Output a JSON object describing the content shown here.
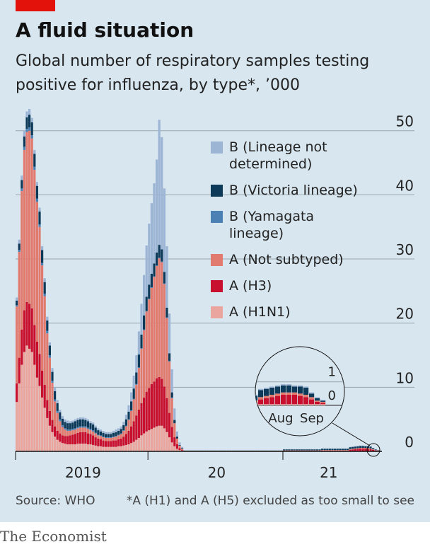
{
  "chart_data": {
    "type": "stacked_bar",
    "title": "A fluid situation",
    "subtitle": "Global number of respiratory samples testing positive for influenza, by type*, ’000",
    "source": "Source: WHO",
    "note": "*A (H1) and A (H5) excluded as too small to see",
    "ylim": [
      0,
      53.5
    ],
    "yticks": [
      0,
      10,
      20,
      30,
      40,
      50
    ],
    "grid": true,
    "xticks": [
      0,
      52,
      105
    ],
    "xtick_labels": [
      {
        "value": 26,
        "label": "2019"
      },
      {
        "value": 78.5,
        "label": "20"
      },
      {
        "value": 122.5,
        "label": "21"
      }
    ],
    "categories": [
      null,
      null,
      null,
      null,
      null,
      null,
      null,
      null,
      null,
      null,
      null,
      null,
      null,
      null,
      null,
      null,
      null,
      null,
      null,
      null,
      null,
      null,
      null,
      null,
      null,
      null,
      null,
      null,
      null,
      null,
      null,
      null,
      null,
      null,
      null,
      null,
      null,
      null,
      null,
      null,
      null,
      null,
      null,
      null,
      null,
      null,
      null,
      null,
      null,
      null,
      null,
      null,
      null,
      null,
      null,
      null,
      null,
      null,
      null,
      null,
      null,
      null,
      null,
      null,
      null,
      null,
      null,
      null,
      null,
      null,
      null,
      null,
      null,
      null,
      null,
      null,
      null,
      null,
      null,
      null,
      null,
      null,
      null,
      null,
      null,
      null,
      null,
      null,
      null,
      null,
      null,
      null,
      null,
      null,
      null,
      null,
      null,
      null,
      null,
      null,
      null,
      null,
      null,
      null,
      null,
      null,
      null,
      null,
      null,
      null,
      null,
      null,
      null,
      null,
      null,
      null,
      null,
      null,
      null,
      null,
      null,
      null,
      null,
      null,
      null,
      null,
      null,
      null,
      null,
      null,
      null,
      null,
      null,
      null,
      null,
      null,
      null,
      null,
      null,
      null,
      null,
      null,
      null
    ],
    "series": [
      {
        "name": "A (H1N1)",
        "color": "#eaa59e",
        "values": [
          7.7,
          10.6,
          13.5,
          15.5,
          16.5,
          16,
          15.5,
          13.5,
          11.5,
          10.2,
          8.4,
          6.8,
          5.2,
          4,
          3,
          2.3,
          1.8,
          1.5,
          1.3,
          1.2,
          1.1,
          1.1,
          1.1,
          1.1,
          1.2,
          1.2,
          1.2,
          1.2,
          1.1,
          1.1,
          1,
          0.9,
          0.8,
          0.8,
          0.7,
          0.7,
          0.7,
          0.7,
          0.7,
          0.7,
          0.8,
          0.8,
          0.9,
          1,
          1.1,
          1.3,
          1.5,
          1.8,
          2.1,
          2.5,
          2.8,
          3.1,
          3.3,
          3.5,
          3.7,
          3.9,
          4,
          4,
          3.6,
          3,
          2.2,
          1.4,
          0.8,
          0.4,
          0.2,
          0.1,
          0.03,
          0.03,
          0.03,
          0.03,
          0.03,
          0.03,
          0.03,
          0.03,
          0.03,
          0.03,
          0.03,
          0.03,
          0.03,
          0.03,
          0.03,
          0.03,
          0.03,
          0.03,
          0.03,
          0.03,
          0.03,
          0.03,
          0.03,
          0.03,
          0.03,
          0.03,
          0.03,
          0.03,
          0.03,
          0.03,
          0.03,
          0.03,
          0.03,
          0.03,
          0.03,
          0.03,
          0.03,
          0.03,
          0.03,
          0.03,
          0.03,
          0.03,
          0.03,
          0.03,
          0.03,
          0.03,
          0.03,
          0.03,
          0.03,
          0.03,
          0.03,
          0.03,
          0.03,
          0.03,
          0.03,
          0.03,
          0.03,
          0.03,
          0.03,
          0.03,
          0.03,
          0.03,
          0.03,
          0.03,
          0.03,
          0.05,
          0.05,
          0.05,
          0.05,
          0.05,
          0.05,
          0.05,
          0.05,
          0.05,
          0.05,
          0.05,
          0.05
        ]
      },
      {
        "name": "A (H3)",
        "color": "#c8102e",
        "values": [
          2.9,
          4,
          5.5,
          6.5,
          6.8,
          7,
          6.8,
          6.2,
          5.6,
          5,
          4.2,
          3.6,
          2.8,
          2.3,
          1.9,
          1.6,
          1.4,
          1.3,
          1.2,
          1.2,
          1.3,
          1.4,
          1.5,
          1.6,
          1.7,
          1.8,
          1.8,
          1.8,
          1.7,
          1.6,
          1.5,
          1.3,
          1.2,
          1.1,
          1,
          0.9,
          0.9,
          0.9,
          1,
          1,
          1.1,
          1.2,
          1.4,
          1.7,
          2.1,
          2.6,
          3.2,
          3.8,
          4.4,
          5,
          5.6,
          6.2,
          6.6,
          7,
          7.2,
          7.5,
          7.6,
          7.3,
          6.5,
          5.3,
          3.8,
          2.4,
          1.4,
          0.7,
          0.3,
          0.1,
          0.03,
          0.03,
          0.03,
          0.03,
          0.03,
          0.03,
          0.03,
          0.03,
          0.03,
          0.03,
          0.03,
          0.03,
          0.03,
          0.03,
          0.03,
          0.03,
          0.03,
          0.03,
          0.03,
          0.03,
          0.03,
          0.03,
          0.03,
          0.03,
          0.03,
          0.03,
          0.03,
          0.03,
          0.03,
          0.03,
          0.03,
          0.03,
          0.03,
          0.03,
          0.03,
          0.03,
          0.03,
          0.03,
          0.03,
          0.05,
          0.05,
          0.05,
          0.05,
          0.05,
          0.05,
          0.05,
          0.05,
          0.05,
          0.05,
          0.05,
          0.05,
          0.05,
          0.05,
          0.05,
          0.1,
          0.1,
          0.1,
          0.1,
          0.1,
          0.1,
          0.1,
          0.1,
          0.1,
          0.1,
          0.1,
          0.2,
          0.25,
          0.3,
          0.35,
          0.4,
          0.4,
          0.4,
          0.35,
          0.3,
          0.2,
          0.1,
          0.05
        ]
      },
      {
        "name": "A (Not subtyped)",
        "color": "#e27b6f",
        "values": [
          12,
          16.5,
          21.6,
          25,
          26.5,
          27,
          26.5,
          24.2,
          21.8,
          19.8,
          16.4,
          13.8,
          10.4,
          8.3,
          5.8,
          3.9,
          2.8,
          1.9,
          1.3,
          1,
          0.8,
          0.7,
          0.7,
          0.7,
          0.7,
          0.7,
          0.7,
          0.7,
          0.7,
          0.6,
          0.6,
          0.6,
          0.5,
          0.5,
          0.5,
          0.5,
          0.5,
          0.5,
          0.5,
          0.6,
          0.6,
          0.7,
          0.9,
          1.2,
          1.7,
          2.4,
          3.4,
          4.8,
          6.5,
          8.5,
          10.5,
          12.5,
          13.8,
          15,
          16.3,
          17.5,
          18.5,
          18.2,
          16,
          12.5,
          8,
          4.5,
          2.2,
          0.9,
          0.4,
          0.2,
          0.05,
          0.05,
          0.05,
          0.05,
          0.05,
          0.05,
          0.05,
          0.05,
          0.05,
          0.05,
          0.05,
          0.05,
          0.05,
          0.05,
          0.05,
          0.05,
          0.05,
          0.05,
          0.05,
          0.05,
          0.05,
          0.05,
          0.05,
          0.05,
          0.05,
          0.05,
          0.05,
          0.05,
          0.05,
          0.05,
          0.05,
          0.05,
          0.05,
          0.05,
          0.05,
          0.05,
          0.05,
          0.05,
          0.05,
          0.08,
          0.08,
          0.08,
          0.08,
          0.08,
          0.08,
          0.08,
          0.08,
          0.08,
          0.08,
          0.08,
          0.08,
          0.08,
          0.08,
          0.08,
          0.08,
          0.08,
          0.08,
          0.08,
          0.08,
          0.08,
          0.08,
          0.08,
          0.08,
          0.08,
          0.08,
          0.1,
          0.1,
          0.1,
          0.1,
          0.1,
          0.1,
          0.1,
          0.1,
          0.1,
          0.1,
          0.05,
          0.05
        ]
      },
      {
        "name": "B (Yamagata lineage)",
        "color": "#4a80b4",
        "values": [
          0.2,
          0.3,
          0.4,
          0.5,
          0.5,
          0.5,
          0.5,
          0.5,
          0.5,
          0.4,
          0.4,
          0.4,
          0.4,
          0.4,
          0.3,
          0.3,
          0.3,
          0.3,
          0.3,
          0.2,
          0.2,
          0.2,
          0.2,
          0.2,
          0.2,
          0.2,
          0.2,
          0.2,
          0.2,
          0.2,
          0.2,
          0.1,
          0.1,
          0.1,
          0.1,
          0.1,
          0.1,
          0.1,
          0.1,
          0.1,
          0.1,
          0.1,
          0.1,
          0.1,
          0.1,
          0.1,
          0.1,
          0.1,
          0.1,
          0.1,
          0.1,
          0.1,
          0.1,
          0.1,
          0.1,
          0.1,
          0.1,
          0.1,
          0.1,
          0.1,
          0.1,
          0.1,
          0,
          0,
          0,
          0,
          0,
          0,
          0,
          0,
          0,
          0,
          0,
          0,
          0,
          0,
          0,
          0,
          0,
          0,
          0,
          0,
          0,
          0,
          0,
          0,
          0,
          0,
          0,
          0,
          0,
          0,
          0,
          0,
          0,
          0,
          0,
          0,
          0,
          0,
          0,
          0,
          0,
          0,
          0,
          0,
          0,
          0,
          0,
          0,
          0,
          0,
          0,
          0,
          0,
          0,
          0,
          0,
          0,
          0,
          0,
          0,
          0,
          0,
          0,
          0,
          0,
          0,
          0,
          0,
          0,
          0,
          0,
          0,
          0,
          0,
          0,
          0,
          0,
          0,
          0,
          0,
          0
        ]
      },
      {
        "name": "B (Victoria lineage)",
        "color": "#0d3a58",
        "values": [
          0.7,
          1,
          1.3,
          1.6,
          1.8,
          2,
          2,
          2,
          2,
          2,
          2,
          1.8,
          1.6,
          1.5,
          1.4,
          1.3,
          1.2,
          1.1,
          1,
          1,
          1,
          1,
          1,
          1.1,
          1.1,
          1.1,
          1.1,
          1,
          1,
          0.9,
          0.9,
          0.8,
          0.7,
          0.6,
          0.6,
          0.5,
          0.5,
          0.5,
          0.6,
          0.6,
          0.6,
          0.7,
          0.8,
          1,
          1.2,
          1.4,
          1.6,
          1.8,
          2,
          2.1,
          2.2,
          2.2,
          2.2,
          2.1,
          2,
          2,
          2,
          1.9,
          1.8,
          1.5,
          1.2,
          0.8,
          0.5,
          0.3,
          0.1,
          0.1,
          0.02,
          0.02,
          0.02,
          0.02,
          0.02,
          0.02,
          0.02,
          0.02,
          0.02,
          0.02,
          0.02,
          0.02,
          0.02,
          0.02,
          0.02,
          0.02,
          0.02,
          0.02,
          0.02,
          0.02,
          0.02,
          0.02,
          0.02,
          0.02,
          0.02,
          0.02,
          0.02,
          0.02,
          0.02,
          0.02,
          0.02,
          0.02,
          0.02,
          0.02,
          0.02,
          0.02,
          0.02,
          0.02,
          0.02,
          0.15,
          0.15,
          0.15,
          0.15,
          0.15,
          0.15,
          0.15,
          0.15,
          0.15,
          0.15,
          0.15,
          0.15,
          0.15,
          0.15,
          0.15,
          0.2,
          0.2,
          0.2,
          0.2,
          0.2,
          0.2,
          0.2,
          0.2,
          0.2,
          0.2,
          0.2,
          0.3,
          0.3,
          0.3,
          0.3,
          0.3,
          0.3,
          0.25,
          0.3,
          0.3,
          0.15,
          0.1,
          0.05
        ]
      },
      {
        "name": "B (Lineage not determined)",
        "color": "#9db5d5",
        "values": [
          0.5,
          0.6,
          0.7,
          0.9,
          0.9,
          0.9,
          0.7,
          0.6,
          0.6,
          0.6,
          0.6,
          0.6,
          0.6,
          0.5,
          0.6,
          0.6,
          0.5,
          0.4,
          0.4,
          0.4,
          0.4,
          0.3,
          0.3,
          0.3,
          0.3,
          0.3,
          0.3,
          0.3,
          0.3,
          0.3,
          0.3,
          0.3,
          0.3,
          0.3,
          0.3,
          0.3,
          0.3,
          0.3,
          0.3,
          0.4,
          0.4,
          0.4,
          0.5,
          0.7,
          1,
          1.4,
          2,
          2.7,
          3.6,
          4.8,
          6.3,
          8,
          9.5,
          11,
          12.5,
          14.5,
          19.5,
          17.5,
          13,
          9.6,
          6.2,
          3.6,
          1.8,
          0.8,
          0.4,
          0.2,
          0.04,
          0.04,
          0.04,
          0.04,
          0.04,
          0.04,
          0.04,
          0.04,
          0.04,
          0.04,
          0.04,
          0.04,
          0.04,
          0.04,
          0.04,
          0.04,
          0.04,
          0.04,
          0.04,
          0.04,
          0.04,
          0.04,
          0.04,
          0.04,
          0.04,
          0.04,
          0.04,
          0.04,
          0.04,
          0.04,
          0.04,
          0.04,
          0.04,
          0.04,
          0.04,
          0.04,
          0.04,
          0.04,
          0.04,
          0.05,
          0.05,
          0.05,
          0.05,
          0.05,
          0.05,
          0.05,
          0.05,
          0.05,
          0.05,
          0.05,
          0.05,
          0.05,
          0.05,
          0.05,
          0.05,
          0.05,
          0.05,
          0.05,
          0.05,
          0.05,
          0.05,
          0.05,
          0.05,
          0.05,
          0.05,
          0.05,
          0.05,
          0.05,
          0.05,
          0.05,
          0.05,
          0.05,
          0.05,
          0.05,
          0.05,
          0.05,
          0.03
        ]
      }
    ],
    "inset": {
      "xlim": [
        130.5,
        146.25
      ],
      "ylim": [
        -1.3,
        2.5
      ],
      "yticks": [
        0,
        1
      ],
      "xtick_labels": [
        {
          "value": 135,
          "label": "Aug"
        },
        {
          "value": 140.5,
          "label": "Sep"
        }
      ]
    }
  },
  "footer": {
    "brand": "The Economist"
  }
}
